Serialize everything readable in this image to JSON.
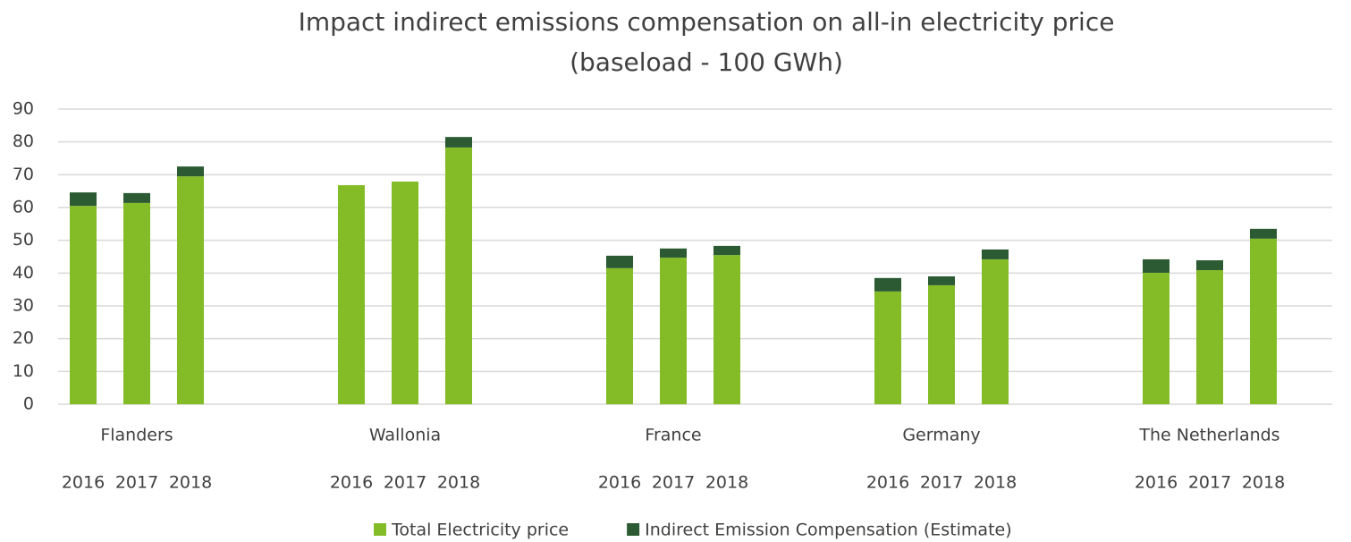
{
  "chart_data": {
    "type": "stacked_bar",
    "title": "Impact indirect emissions compensation on all-in electricity price",
    "subtitle": "(baseload - 100 GWh)",
    "groups": [
      "Flanders",
      "Wallonia",
      "France",
      "Germany",
      "The Netherlands"
    ],
    "categories": [
      "2016",
      "2017",
      "2018",
      "2016",
      "2017",
      "2018",
      "2016",
      "2017",
      "2018",
      "2016",
      "2017",
      "2018",
      "2016",
      "2017",
      "2018"
    ],
    "series": [
      {
        "name": "Total Electricity price",
        "color": "#84bc27",
        "values": [
          60.5,
          61.4,
          69.5,
          66.8,
          67.9,
          78.3,
          41.5,
          44.7,
          45.5,
          34.4,
          36.3,
          44.2,
          40.1,
          40.9,
          50.5
        ]
      },
      {
        "name": "Indirect Emission Compensation (Estimate)",
        "color": "#2b5a33",
        "values": [
          4.1,
          3.0,
          3.0,
          0,
          0,
          3.2,
          3.8,
          2.8,
          2.8,
          4.1,
          2.7,
          3.0,
          4.1,
          3.0,
          3.0
        ]
      }
    ],
    "ylim": [
      0,
      90
    ],
    "yticks": [
      0,
      10,
      20,
      30,
      40,
      50,
      60,
      70,
      80,
      90
    ],
    "grid": true,
    "legend": "bottom"
  }
}
